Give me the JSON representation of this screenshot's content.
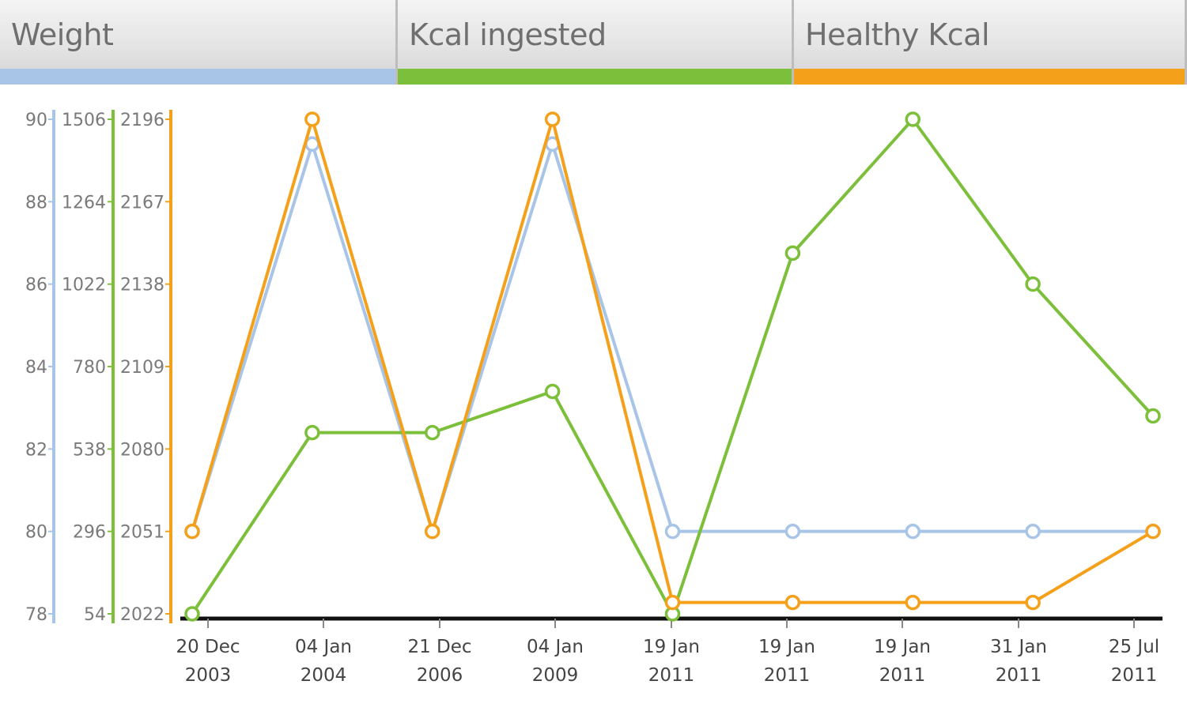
{
  "tabs": [
    {
      "label": "Weight",
      "color": "#a8c4e6"
    },
    {
      "label": "Kcal ingested",
      "color": "#7cbf3a"
    },
    {
      "label": "Healthy Kcal",
      "color": "#f5a01a"
    }
  ],
  "chart_data": {
    "type": "line",
    "grid": false,
    "x": [
      [
        "20 Dec",
        "2003"
      ],
      [
        "04 Jan",
        "2004"
      ],
      [
        "21 Dec",
        "2006"
      ],
      [
        "04 Jan",
        "2009"
      ],
      [
        "19 Jan",
        "2011"
      ],
      [
        "19 Jan",
        "2011"
      ],
      [
        "19 Jan",
        "2011"
      ],
      [
        "31 Jan",
        "2011"
      ],
      [
        "25 Jul",
        "2011"
      ]
    ],
    "axes": [
      {
        "series": "Weight",
        "ticks": [
          "90",
          "88",
          "86",
          "84",
          "82",
          "80",
          "78"
        ],
        "ylim": [
          78,
          90
        ]
      },
      {
        "series": "Kcal ingested",
        "ticks": [
          "1506",
          "1264",
          "1022",
          "780",
          "538",
          "296",
          "54"
        ],
        "ylim": [
          54,
          1506
        ]
      },
      {
        "series": "Healthy Kcal",
        "ticks": [
          "2196",
          "2167",
          "2138",
          "2109",
          "2080",
          "2051",
          "2022"
        ],
        "ylim": [
          2022,
          2196
        ]
      }
    ],
    "series": [
      {
        "name": "Weight",
        "color": "#a8c4e6",
        "axis": 0,
        "values": [
          80,
          89.4,
          80,
          89.4,
          80,
          80,
          80,
          80,
          80
        ]
      },
      {
        "name": "Kcal ingested",
        "color": "#7cbf3a",
        "axis": 1,
        "values": [
          54,
          586,
          586,
          707,
          54,
          1113,
          1506,
          1022,
          635
        ]
      },
      {
        "name": "Healthy Kcal",
        "color": "#f5a01a",
        "axis": 2,
        "values": [
          2051,
          2196,
          2051,
          2196,
          2026,
          2026,
          2026,
          2026,
          2051
        ]
      }
    ]
  }
}
